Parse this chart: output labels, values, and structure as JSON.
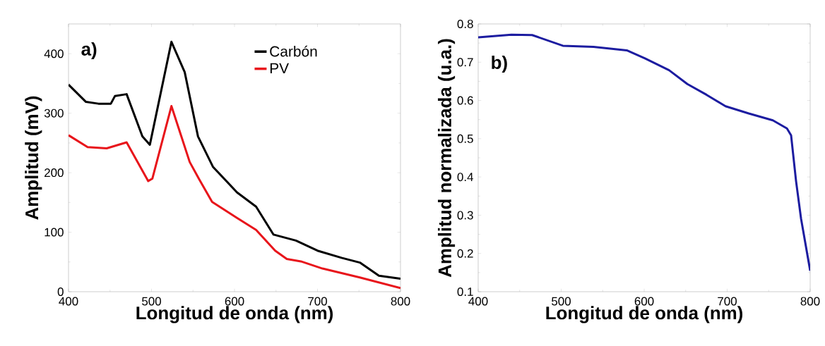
{
  "chart_data": [
    {
      "type": "line",
      "xlabel": "Longitud de onda (nm)",
      "ylabel": "Amplitud (mV)",
      "annotations": [
        "a)"
      ],
      "xlim": [
        400,
        800
      ],
      "ylim": [
        0,
        450
      ],
      "xticks": [
        400,
        500,
        600,
        700,
        800
      ],
      "yticks": [
        0,
        100,
        200,
        300,
        400
      ],
      "legend": "top right",
      "line_style": "solid",
      "series": [
        {
          "name": "Carbón",
          "color": "#000000",
          "x": [
            400,
            421,
            436,
            451,
            456,
            470,
            489,
            498,
            524,
            540,
            556,
            574,
            603,
            626,
            647,
            674,
            700,
            729,
            751,
            774,
            800
          ],
          "values": [
            348,
            319,
            316,
            316,
            329,
            332,
            261,
            247,
            420,
            369,
            261,
            210,
            167,
            143,
            96,
            86,
            69,
            57,
            49,
            27,
            22
          ]
        },
        {
          "name": "PV",
          "color": "#e8151b",
          "x": [
            400,
            423,
            446,
            470,
            496,
            501,
            524,
            546,
            557,
            573,
            603,
            626,
            649,
            663,
            680,
            706,
            751,
            800
          ],
          "values": [
            263,
            243,
            241,
            251,
            186,
            190,
            312,
            218,
            190,
            151,
            124,
            104,
            69,
            55,
            51,
            39,
            24,
            6
          ]
        }
      ]
    },
    {
      "type": "line",
      "xlabel": "Longitud de onda (nm)",
      "ylabel": "Amplitud normalizada (u.a.)",
      "annotations": [
        "b)"
      ],
      "xlim": [
        400,
        800
      ],
      "ylim": [
        0.1,
        0.8
      ],
      "xticks": [
        400,
        500,
        600,
        700,
        800
      ],
      "yticks": [
        0.1,
        0.2,
        0.3,
        0.4,
        0.5,
        0.6,
        0.7,
        0.8
      ],
      "line_style": "solid",
      "color": "#1c1ca0",
      "x": [
        400,
        440,
        465,
        502,
        539,
        579,
        601,
        630,
        652,
        675,
        698,
        726,
        755,
        772,
        777,
        783,
        789,
        800
      ],
      "values": [
        0.765,
        0.772,
        0.771,
        0.743,
        0.74,
        0.731,
        0.71,
        0.679,
        0.643,
        0.615,
        0.585,
        0.566,
        0.548,
        0.527,
        0.509,
        0.389,
        0.291,
        0.155
      ]
    }
  ]
}
